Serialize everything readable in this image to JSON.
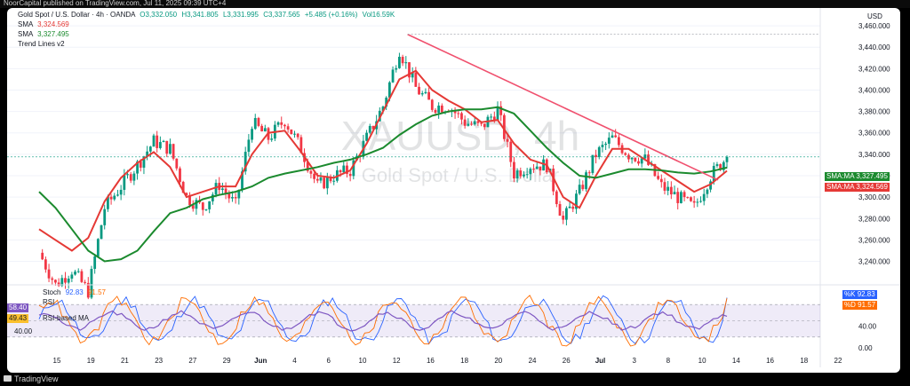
{
  "header": {
    "caption": "NoorCapital published on TradingView.com, Jul 11, 2025 09:39 UTC+4"
  },
  "footer": {
    "brand": "TradingView"
  },
  "main_legend": {
    "symbol": "Gold Spot / U.S. Dollar · 4h · OANDA",
    "open": "O3,332.050",
    "high": "H3,341.805",
    "low": "L3,331.995",
    "close": "C3,337.565",
    "change": "+5.485 (+0.16%)",
    "volume": "Vol16.59K",
    "sma1_label": "SMA",
    "sma1_value": "3,324.569",
    "sma2_label": "SMA",
    "sma2_value": "3,327.495",
    "trend_label": "Trend Lines v2"
  },
  "watermark": {
    "symbol": "XAUUSD, 4h",
    "name": "Gold Spot / U.S. Dollar"
  },
  "price_axis": {
    "currency": "USD",
    "ticks": [
      "3,460.000",
      "3,440.000",
      "3,420.000",
      "3,400.000",
      "3,380.000",
      "3,360.000",
      "3,340.000",
      "3,320.000",
      "3,300.000",
      "3,280.000",
      "3,260.000",
      "3,240.000"
    ]
  },
  "price_tags": {
    "sma_green": {
      "label": "SMA:MA",
      "value": "3,327.495"
    },
    "sma_red": {
      "label": "SMA:MA",
      "value": "3,324.569"
    }
  },
  "oscillator_legend": {
    "stoch_label": "Stoch",
    "stoch_k": "92.83",
    "stoch_d": "91.57",
    "rsi_label": "RSI",
    "rsi_value": "58.40",
    "rsi_ma_label": "RSI-based MA",
    "rsi_ma_value": "49.43",
    "level_40": "40.00"
  },
  "osc_axis": {
    "k_label": "%K",
    "k_value": "92.83",
    "d_label": "%D",
    "d_value": "91.57",
    "ticks": [
      "40.00",
      "0.00"
    ]
  },
  "time_axis": {
    "labels": [
      "15",
      "19",
      "21",
      "23",
      "27",
      "29",
      "Jun",
      "4",
      "6",
      "10",
      "12",
      "16",
      "18",
      "20",
      "24",
      "26",
      "Jul",
      "3",
      "8",
      "10",
      "14",
      "16",
      "18",
      "22"
    ]
  },
  "colors": {
    "up": "#089981",
    "down": "#f23645",
    "sma_green": "#1b8a2e",
    "sma_red": "#e53935",
    "trend": "#f0506e",
    "stoch_k": "#2962ff",
    "stoch_d": "#ff6d00",
    "rsi": "#7e57c2",
    "band": "#7e57c2"
  },
  "chart_data": [
    {
      "type": "candlestick",
      "title": "Gold Spot / U.S. Dollar · 4h · OANDA",
      "y_axis_label": "USD",
      "ylim": [
        3228,
        3470
      ],
      "current_price": 3337.565,
      "x_labels": [
        "15",
        "19",
        "21",
        "23",
        "27",
        "29",
        "Jun",
        "4",
        "6",
        "10",
        "12",
        "16",
        "18",
        "20",
        "24",
        "26",
        "Jul",
        "3",
        "8",
        "10",
        "14",
        "16",
        "18",
        "22"
      ],
      "close_path": [
        {
          "x": "May 14",
          "y": 3248
        },
        {
          "x": "May 15",
          "y": 3218
        },
        {
          "x": "May 16",
          "y": 3232
        },
        {
          "x": "May 19",
          "y": 3212
        },
        {
          "x": "May 20",
          "y": 3290
        },
        {
          "x": "May 21",
          "y": 3310
        },
        {
          "x": "May 22",
          "y": 3330
        },
        {
          "x": "May 23",
          "y": 3352
        },
        {
          "x": "May 26",
          "y": 3345
        },
        {
          "x": "May 27",
          "y": 3300
        },
        {
          "x": "May 28",
          "y": 3290
        },
        {
          "x": "May 29",
          "y": 3312
        },
        {
          "x": "May 30",
          "y": 3292
        },
        {
          "x": "Jun 2",
          "y": 3370
        },
        {
          "x": "Jun 3",
          "y": 3355
        },
        {
          "x": "Jun 4",
          "y": 3372
        },
        {
          "x": "Jun 5",
          "y": 3345
        },
        {
          "x": "Jun 6",
          "y": 3310
        },
        {
          "x": "Jun 9",
          "y": 3320
        },
        {
          "x": "Jun 10",
          "y": 3325
        },
        {
          "x": "Jun 11",
          "y": 3355
        },
        {
          "x": "Jun 12",
          "y": 3385
        },
        {
          "x": "Jun 13",
          "y": 3438
        },
        {
          "x": "Jun 16",
          "y": 3402
        },
        {
          "x": "Jun 17",
          "y": 3385
        },
        {
          "x": "Jun 18",
          "y": 3385
        },
        {
          "x": "Jun 19",
          "y": 3370
        },
        {
          "x": "Jun 20",
          "y": 3365
        },
        {
          "x": "Jun 23",
          "y": 3382
        },
        {
          "x": "Jun 24",
          "y": 3322
        },
        {
          "x": "Jun 25",
          "y": 3330
        },
        {
          "x": "Jun 26",
          "y": 3330
        },
        {
          "x": "Jun 27",
          "y": 3278
        },
        {
          "x": "Jun 30",
          "y": 3305
        },
        {
          "x": "Jul 1",
          "y": 3340
        },
        {
          "x": "Jul 2",
          "y": 3355
        },
        {
          "x": "Jul 3",
          "y": 3340
        },
        {
          "x": "Jul 4",
          "y": 3335
        },
        {
          "x": "Jul 7",
          "y": 3310
        },
        {
          "x": "Jul 8",
          "y": 3300
        },
        {
          "x": "Jul 9",
          "y": 3290
        },
        {
          "x": "Jul 10",
          "y": 3320
        },
        {
          "x": "Jul 11",
          "y": 3337.565
        }
      ],
      "series": [
        {
          "name": "SMA",
          "last": 3324.569,
          "values": [
            3270,
            3260,
            3250,
            3262,
            3296,
            3318,
            3332,
            3342,
            3328,
            3300,
            3305,
            3310,
            3310,
            3340,
            3360,
            3362,
            3342,
            3320,
            3318,
            3325,
            3350,
            3380,
            3410,
            3418,
            3400,
            3390,
            3382,
            3370,
            3372,
            3350,
            3335,
            3330,
            3300,
            3290,
            3320,
            3345,
            3345,
            3335,
            3325,
            3315,
            3305,
            3312,
            3324.569
          ]
        },
        {
          "name": "SMA",
          "last": 3327.495,
          "values": [
            3305,
            3290,
            3270,
            3250,
            3240,
            3242,
            3250,
            3268,
            3285,
            3290,
            3298,
            3302,
            3305,
            3310,
            3318,
            3322,
            3325,
            3328,
            3332,
            3335,
            3340,
            3346,
            3358,
            3368,
            3376,
            3380,
            3382,
            3382,
            3384,
            3378,
            3362,
            3346,
            3332,
            3320,
            3318,
            3322,
            3326,
            3326,
            3325,
            3323,
            3322,
            3324,
            3327.495
          ]
        }
      ]
    },
    {
      "type": "line",
      "title": "Stoch",
      "ylim": [
        0,
        100
      ],
      "series": [
        {
          "name": "Stoch %K",
          "last": 92.83
        },
        {
          "name": "Stoch %D",
          "last": 91.57
        },
        {
          "name": "RSI",
          "last": 58.4
        },
        {
          "name": "RSI-based MA",
          "last": 49.43
        }
      ]
    }
  ]
}
